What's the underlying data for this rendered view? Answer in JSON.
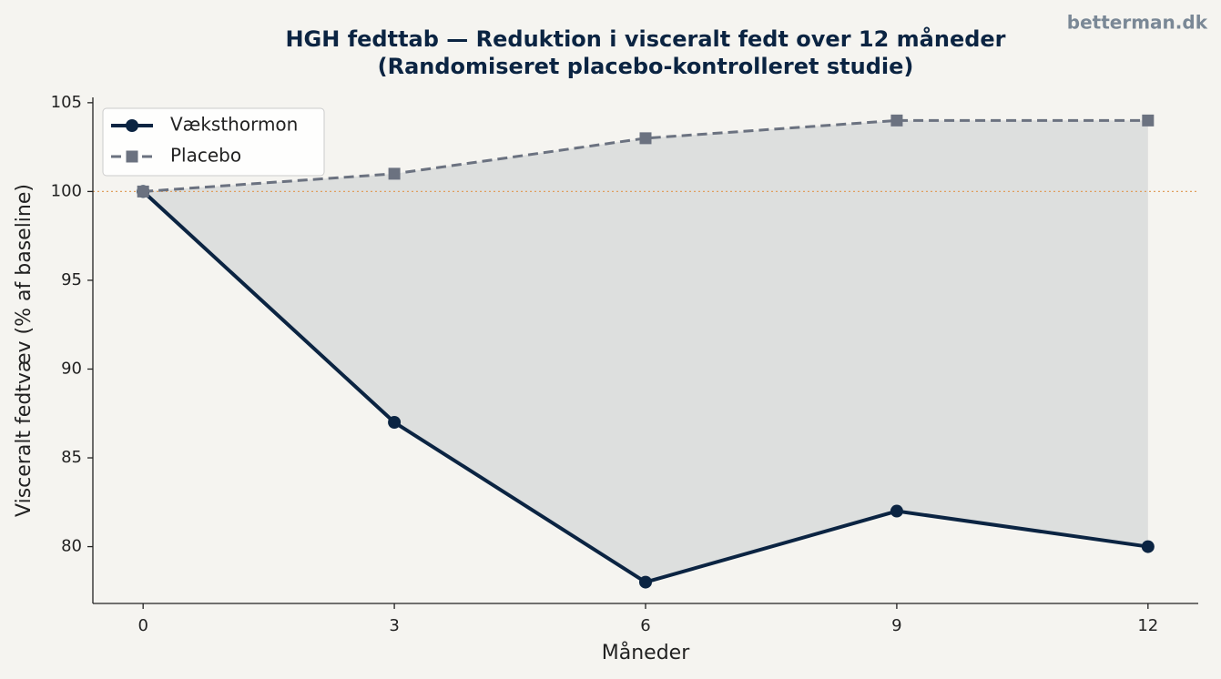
{
  "chart_data": {
    "type": "line",
    "title": "HGH fedttab — Reduktion i visceralt fedt over 12 måneder",
    "subtitle": "(Randomiseret placebo-kontrolleret studie)",
    "watermark": "betterman.dk",
    "x_label": "Måneder",
    "y_label": "Visceralt fedtvæv (% af baseline)",
    "x": [
      0,
      3,
      6,
      9,
      12
    ],
    "series": [
      {
        "name": "Væksthormon",
        "color": "#0b2442",
        "marker": "circle",
        "dashed": false,
        "values": [
          100,
          87,
          78,
          82,
          80
        ]
      },
      {
        "name": "Placebo",
        "color": "#6b7280",
        "marker": "square",
        "dashed": true,
        "values": [
          100,
          101,
          103,
          104,
          104
        ]
      }
    ],
    "fill_between": true,
    "fill_color": "#c5c9cc",
    "reference_line": {
      "value": 100,
      "color": "#e0a060"
    },
    "xlim": [
      -0.6,
      12.6
    ],
    "xticks": [
      0,
      3,
      6,
      9,
      12
    ],
    "ylim": [
      76.8,
      105.3
    ],
    "yticks": [
      80,
      85,
      90,
      95,
      100,
      105
    ],
    "legend": "upper-left"
  }
}
